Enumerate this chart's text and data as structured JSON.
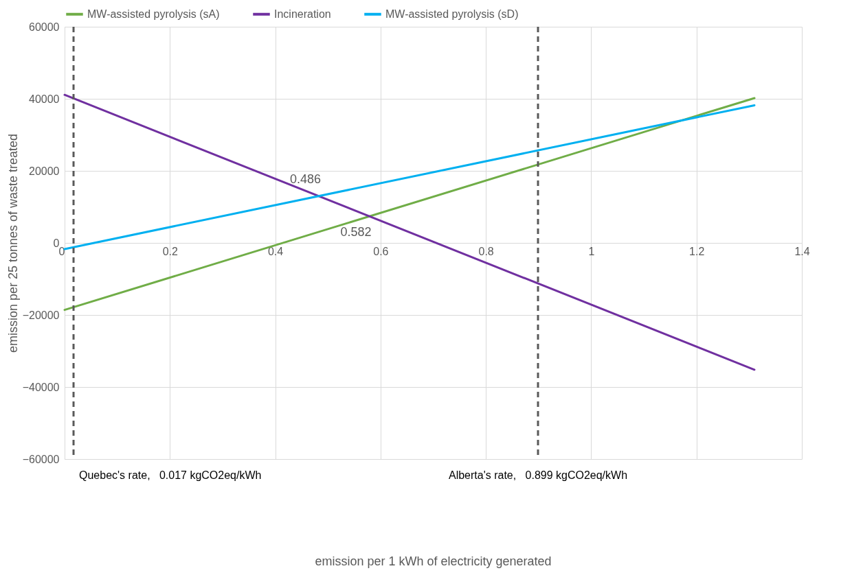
{
  "chart_data": {
    "type": "line",
    "ylabel": "emission per 25 tonnes of waste treated",
    "x": [
      0,
      1.31
    ],
    "series": [
      {
        "name": "MW-assisted pyrolysis (sA)",
        "color": "#70ad47",
        "values": [
          -18600,
          40200
        ]
      },
      {
        "name": "Incineration",
        "color": "#7030a0",
        "values": [
          41100,
          -35200
        ]
      },
      {
        "name": "MW-assisted pyrolysis (sD)",
        "color": "#00b0f0",
        "values": [
          -1700,
          38200
        ]
      }
    ],
    "xlim": [
      0,
      1.4
    ],
    "xticks": [
      0,
      0.2,
      0.4,
      0.6,
      0.8,
      1,
      1.2,
      1.4
    ],
    "ylim": [
      -60000,
      60000
    ],
    "yticks": [
      -60000,
      -40000,
      -20000,
      0,
      20000,
      40000,
      60000
    ],
    "ref_lines": [
      {
        "axis": "x",
        "value": 0.017,
        "label": "Quebec's rate,   0.017 kgCO2eq/kWh",
        "color": "#595959",
        "line_style": "dashed"
      },
      {
        "axis": "x",
        "value": 0.899,
        "label": "Alberta's rate,   0.899 kgCO2eq/kWh",
        "color": "#595959",
        "line_style": "dashed"
      }
    ],
    "annotations": [
      {
        "text": "0.486",
        "x": 0.486,
        "y": 12900
      },
      {
        "text": "0.582",
        "x": 0.582,
        "y": 7400
      },
      "emission per 1 kWh of electricity generated"
    ],
    "grid": true,
    "legend": "top",
    "marker": "none",
    "line_style": "solid"
  }
}
